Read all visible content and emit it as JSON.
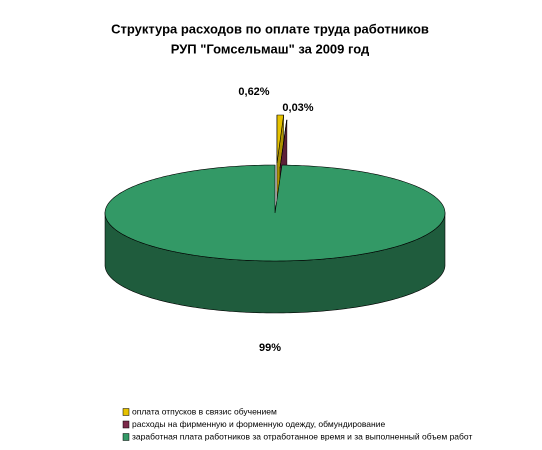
{
  "chart_data": {
    "type": "pie",
    "title": [
      "Структура расходов по оплате труда работников",
      "РУП \"Гомсельмаш\" за 2009 год"
    ],
    "series": [
      {
        "name": "оплата отпусков в связис обучением",
        "color": "#e6c200",
        "values": [
          0.62
        ],
        "value_labels": [
          "0,62%"
        ]
      },
      {
        "name": "расходы на фирменную и форменную одежду, обмундирование",
        "color": "#7b2a4a",
        "values": [
          0.03
        ],
        "value_labels": [
          "0,03%"
        ]
      },
      {
        "name": "заработная плата работников за отработанное время и за выполненный объем работ",
        "color": "#339966",
        "values": [
          99
        ],
        "value_labels": [
          "99%"
        ]
      }
    ]
  }
}
